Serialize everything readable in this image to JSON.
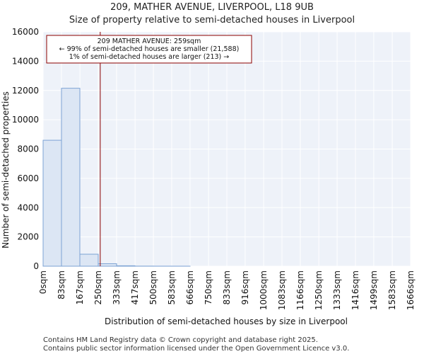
{
  "chart_data": {
    "type": "bar",
    "title": "209, MATHER AVENUE, LIVERPOOL, L18 9UB",
    "subtitle": "Size of property relative to semi-detached houses in Liverpool",
    "xlabel": "Distribution of semi-detached houses by size in Liverpool",
    "ylabel": "Number of semi-detached properties",
    "ylim": [
      0,
      16000
    ],
    "yticks": [
      0,
      2000,
      4000,
      6000,
      8000,
      10000,
      12000,
      14000,
      16000
    ],
    "ytick_labels": [
      "0",
      "2000",
      "4000",
      "6000",
      "8000",
      "10000",
      "12000",
      "14000",
      "16000"
    ],
    "xticks": [
      0,
      83,
      167,
      250,
      333,
      417,
      500,
      583,
      666,
      750,
      833,
      916,
      1000,
      1083,
      1166,
      1250,
      1333,
      1416,
      1499,
      1583,
      1666
    ],
    "xtick_labels": [
      "0sqm",
      "83sqm",
      "167sqm",
      "250sqm",
      "333sqm",
      "417sqm",
      "500sqm",
      "583sqm",
      "666sqm",
      "750sqm",
      "833sqm",
      "916sqm",
      "1000sqm",
      "1083sqm",
      "1166sqm",
      "1250sqm",
      "1333sqm",
      "1416sqm",
      "1499sqm",
      "1583sqm",
      "1666sqm"
    ],
    "xlim": [
      0,
      1666
    ],
    "values": [
      8600,
      12150,
      820,
      170,
      30,
      5,
      2,
      1,
      0,
      0,
      0,
      0,
      0,
      0,
      0,
      0,
      0,
      0,
      0,
      0
    ],
    "bar_color": "#dce6f4",
    "bar_edge": "#7da3d4",
    "grid": true,
    "marker": {
      "value": 259,
      "color": "#8b0000",
      "lines": [
        "209 MATHER AVENUE: 259sqm",
        "← 99% of semi-detached houses are smaller (21,588)",
        "1% of semi-detached houses are larger (213) →"
      ]
    }
  },
  "footer": {
    "line1": "Contains HM Land Registry data © Crown copyright and database right 2025.",
    "line2": "Contains public sector information licensed under the Open Government Licence v3.0."
  }
}
